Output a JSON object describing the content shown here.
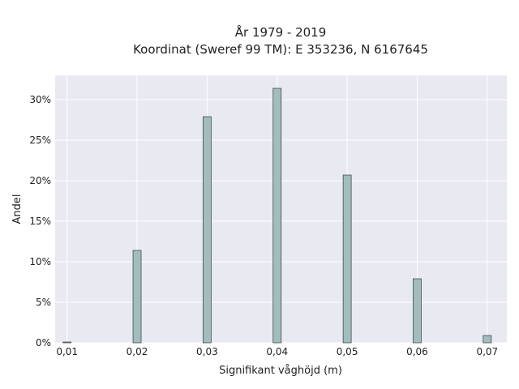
{
  "chart_data": {
    "type": "bar",
    "title_line1": "År 1979 - 2019",
    "title_line2": "Koordinat (Sweref 99 TM): E 353236, N 6167645",
    "xlabel": "Signifikant våghöjd (m)",
    "ylabel": "Andel",
    "x": [
      0.01,
      0.02,
      0.03,
      0.04,
      0.05,
      0.06,
      0.07
    ],
    "values": [
      0.1,
      11.4,
      27.9,
      31.4,
      20.7,
      7.9,
      0.9
    ],
    "x_ticks": [
      "0,01",
      "0,02",
      "0,03",
      "0,04",
      "0,05",
      "0,06",
      "0,07"
    ],
    "y_ticks": [
      "0%",
      "5%",
      "10%",
      "15%",
      "20%",
      "25%",
      "30%"
    ],
    "y_tick_values": [
      0,
      5,
      10,
      15,
      20,
      25,
      30
    ],
    "xlim": [
      0.0083,
      0.0728
    ],
    "ylim": [
      0,
      33
    ],
    "grid": true,
    "colors": {
      "bar_fill": "#a3bcbc",
      "bar_stroke": "#2f3d3d",
      "plot_bg": "#e9e9f1",
      "grid": "#ffffff"
    }
  }
}
